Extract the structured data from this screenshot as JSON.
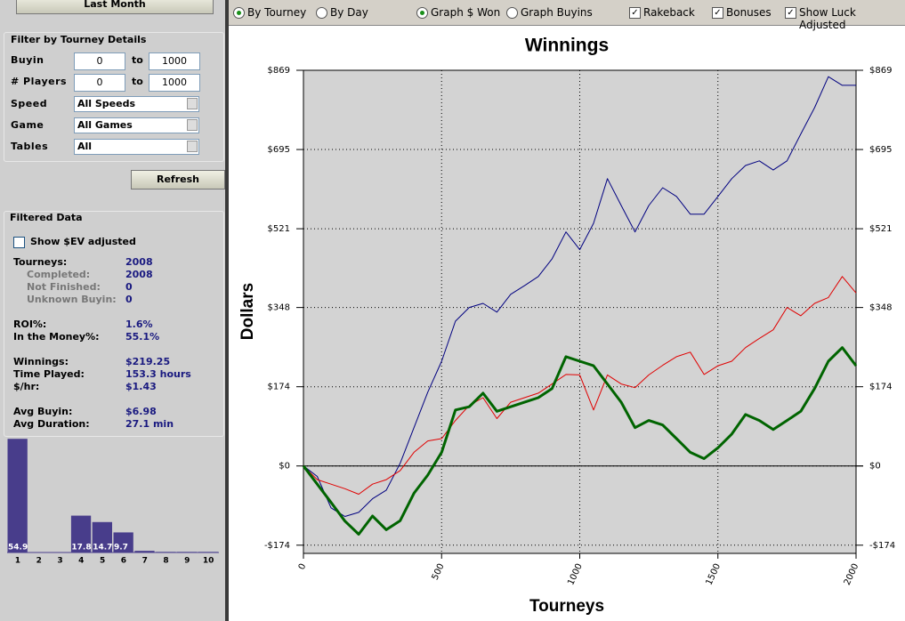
{
  "sidebar": {
    "period_button": "Last Month",
    "filter": {
      "title": "Filter by Tourney Details",
      "rows": [
        {
          "label": "Buyin",
          "min": 0,
          "to": "to",
          "max": 1000
        },
        {
          "label": "# Players",
          "min": 0,
          "to": "to",
          "max": 1000
        },
        {
          "label": "Speed",
          "value": "All Speeds"
        },
        {
          "label": "Game",
          "value": "All Games"
        },
        {
          "label": "Tables",
          "value": "All"
        }
      ]
    },
    "refresh_button": "Refresh",
    "filtered": {
      "title": "Filtered Data",
      "ev_checkbox": {
        "label": "Show $EV adjusted",
        "checked": false
      },
      "stats": [
        {
          "label": "Tourneys:",
          "value": "2008"
        },
        {
          "label": "Completed:",
          "value": "2008"
        },
        {
          "label": "Not Finished:",
          "value": "0"
        },
        {
          "label": "Unknown Buyin:",
          "value": "0"
        },
        {
          "label": "ROI%:",
          "value": "1.6%"
        },
        {
          "label": "In the Money%:",
          "value": "55.1%"
        },
        {
          "label": "Winnings:",
          "value": "$219.25"
        },
        {
          "label": "Time Played:",
          "value": "153.3 hours"
        },
        {
          "label": "$/hr:",
          "value": "$1.43"
        },
        {
          "label": "Avg Buyin:",
          "value": "$6.98"
        },
        {
          "label": "Avg Duration:",
          "value": "27.1 min"
        }
      ]
    }
  },
  "toolbar": {
    "view": [
      {
        "label": "By Tourney",
        "checked": true
      },
      {
        "label": "By Day",
        "checked": false
      }
    ],
    "graph": [
      {
        "label": "Graph $ Won",
        "checked": true
      },
      {
        "label": "Graph Buyins",
        "checked": false
      }
    ],
    "options": [
      {
        "label": "Rakeback",
        "checked": true
      },
      {
        "label": "Bonuses",
        "checked": true
      },
      {
        "label": "Show Luck Adjusted",
        "checked": true
      }
    ]
  },
  "chart_data": [
    {
      "type": "line",
      "title": "Winnings",
      "x_label": "Tourneys",
      "y_label": "Dollars",
      "x": [
        0,
        50,
        100,
        150,
        200,
        250,
        300,
        350,
        400,
        450,
        500,
        550,
        600,
        650,
        700,
        750,
        800,
        850,
        900,
        950,
        1000,
        1050,
        1100,
        1150,
        1200,
        1250,
        1300,
        1350,
        1400,
        1450,
        1500,
        1550,
        1600,
        1650,
        1700,
        1750,
        1800,
        1850,
        1900,
        1950,
        2000
      ],
      "series": [
        {
          "color": "#000080",
          "linewidth": 1,
          "values": [
            0,
            -23,
            -92,
            -111,
            -102,
            -72,
            -53,
            6,
            84,
            162,
            230,
            318,
            348,
            357,
            338,
            377,
            396,
            416,
            455,
            514,
            475,
            533,
            631,
            572,
            514,
            572,
            611,
            592,
            553,
            553,
            592,
            631,
            660,
            670,
            650,
            670,
            729,
            787,
            855,
            836,
            836
          ]
        },
        {
          "color": "#e00000",
          "linewidth": 1,
          "values": [
            0,
            -30,
            -40,
            -50,
            -62,
            -40,
            -30,
            -10,
            30,
            55,
            60,
            100,
            133,
            150,
            104,
            140,
            150,
            160,
            180,
            201,
            200,
            123,
            200,
            180,
            172,
            200,
            221,
            240,
            250,
            201,
            220,
            230,
            260,
            280,
            299,
            348,
            330,
            357,
            370,
            416,
            380
          ]
        },
        {
          "color": "#006400",
          "linewidth": 3,
          "values": [
            0,
            -40,
            -80,
            -121,
            -150,
            -110,
            -140,
            -120,
            -60,
            -20,
            30,
            123,
            130,
            160,
            120,
            130,
            140,
            150,
            170,
            240,
            230,
            220,
            180,
            140,
            84,
            100,
            90,
            60,
            30,
            16,
            40,
            70,
            113,
            100,
            80,
            100,
            120,
            170,
            230,
            260,
            220
          ]
        }
      ],
      "xlim": [
        0,
        2000
      ],
      "xticks": [
        0,
        500,
        1000,
        1500,
        2000
      ],
      "ylim": [
        -192,
        869
      ],
      "yticks": [
        {
          "value": -174,
          "label": "-$174"
        },
        {
          "value": 0,
          "label": "$0"
        },
        {
          "value": 174,
          "label": "$174"
        },
        {
          "value": 348,
          "label": "$348"
        },
        {
          "value": 521,
          "label": "$521"
        },
        {
          "value": 695,
          "label": "$695"
        },
        {
          "value": 869,
          "label": "$869"
        }
      ],
      "grid": true
    },
    {
      "type": "bar",
      "categories": [
        "1",
        "2",
        "3",
        "4",
        "5",
        "6",
        "7",
        "8",
        "9",
        "10"
      ],
      "values": [
        54.9,
        0,
        0,
        17.8,
        14.7,
        9.7,
        0.8,
        0.3,
        0.3,
        0.3
      ],
      "value_labels": [
        "54.9",
        null,
        null,
        "17.8",
        "14.7",
        "9.7",
        null,
        null,
        null,
        null
      ],
      "color": "#483d8b",
      "ylim": [
        0,
        55
      ]
    }
  ]
}
